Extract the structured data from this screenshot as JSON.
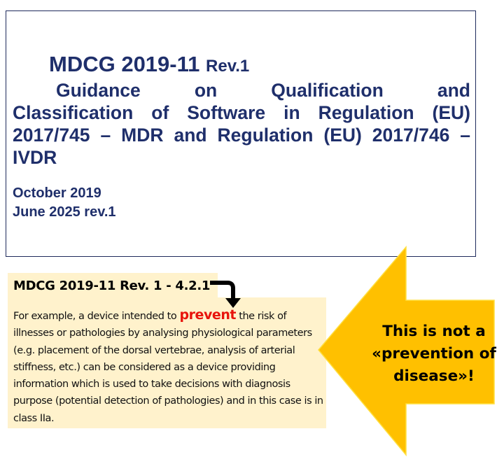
{
  "title_box": {
    "code": "MDCG  2019-11",
    "revision": "Rev.1",
    "subtitle_first_line": "Guidance on Qualification and",
    "subtitle_rest": "Classification of Software in Regulation (EU) 2017/745 – MDR and Regulation (EU) 2017/746 – IVDR",
    "date_original": "October 2019",
    "date_revision": "June 2025 rev.1"
  },
  "quote_box": {
    "header": "MDCG 2019-11 Rev. 1  - 4.2.1",
    "text_before": "For example, a device intended to ",
    "highlight": "prevent",
    "text_after": " the risk of illnesses or pathologies by analysing physiological parameters (e.g. placement of the dorsal vertebrae, analysis of arterial stiffness, etc.) can be considered as a device providing information which is used to take decisions with diagnosis purpose (potential detection of pathologies) and in this case is in class IIa.",
    "background": "#fff2cc",
    "highlight_color": "#e8140c"
  },
  "callout": {
    "line1": "This is not a",
    "line2": "«prevention of",
    "line3": "disease»!",
    "color": "#ffc000",
    "icon": "left-arrow-callout"
  }
}
